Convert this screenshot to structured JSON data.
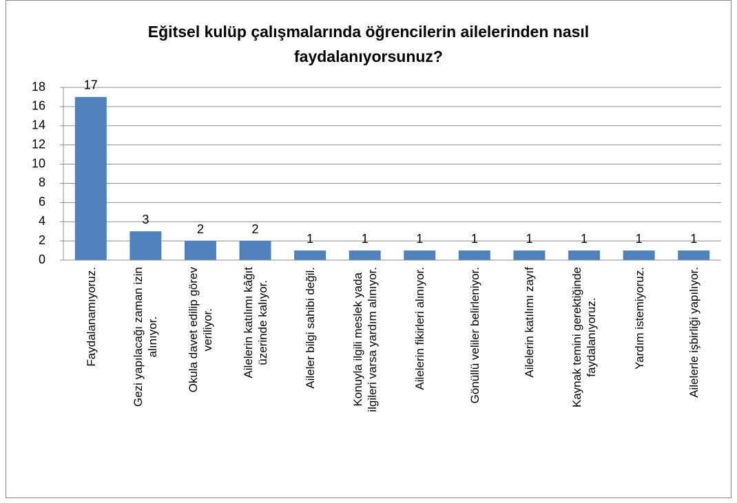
{
  "chart_data": {
    "type": "bar",
    "title": "Eğitsel kulüp çalışmalarında öğrencilerin ailelerinden nasıl\nfaydalanıyorsunuz?",
    "categories": [
      "Faydalanamıyoruz.",
      "Gezi yapılacağı zaman izin\nalınıyor.",
      "Okula davet edilip görev\nveriliyor.",
      "Ailelerin katılımı kâğıt\nüzerinde kalıyor.",
      "Aileler bilgi sahibi değil.",
      "Konuyla ilgili meslek yada\nilgileri varsa yardım alınıyor.",
      "Ailelerin fikirleri alınıyor.",
      "Gönüllü veliler belirleniyor.",
      "Ailelerin katılımı zayıf",
      "Kaynak temini gerektiğinde\nfaydalanıyoruz.",
      "Yardım istemiyoruz.",
      "Ailelerle işbirliği yapılıyor."
    ],
    "values": [
      17,
      3,
      2,
      2,
      1,
      1,
      1,
      1,
      1,
      1,
      1,
      1
    ],
    "color": "#4f81bd",
    "ylim": [
      0,
      18
    ],
    "yticks": [
      0,
      2,
      4,
      6,
      8,
      10,
      12,
      14,
      16,
      18
    ],
    "grid": true
  }
}
